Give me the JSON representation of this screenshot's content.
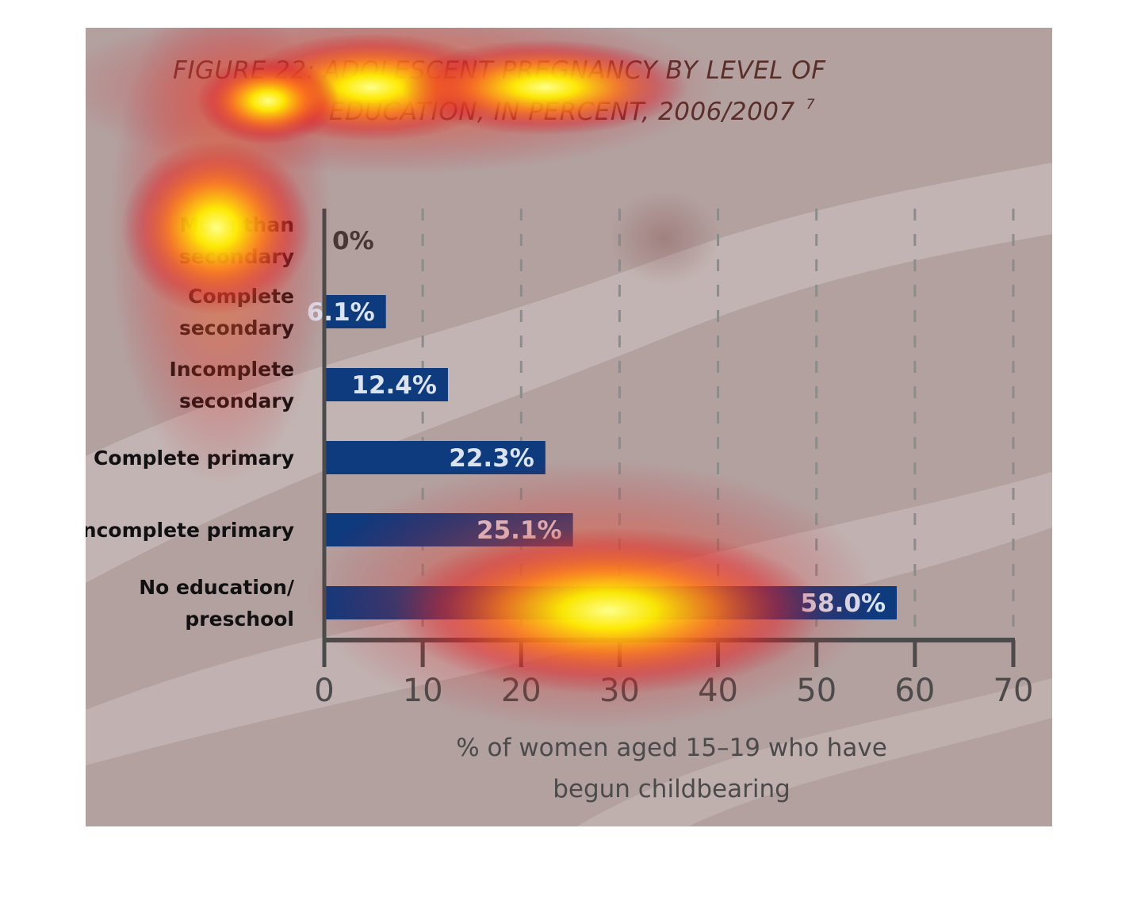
{
  "chart_data": {
    "type": "bar",
    "orientation": "horizontal",
    "title": [
      "FIGURE 22: ADOLESCENT PREGNANCY BY LEVEL OF",
      "EDUCATION, IN PERCENT, 2006/2007"
    ],
    "title_footnote": "7",
    "categories": [
      [
        "More than",
        "secondary"
      ],
      [
        "Complete",
        "secondary"
      ],
      [
        "Incomplete",
        "secondary"
      ],
      [
        "Complete primary"
      ],
      [
        "Incomplete primary"
      ],
      [
        "No education/",
        "preschool"
      ]
    ],
    "values": [
      0,
      6.1,
      12.4,
      22.3,
      25.1,
      58.0
    ],
    "data_labels": [
      "0%",
      "6.1%",
      "12.4%",
      "22.3%",
      "25.1%",
      "58.0%"
    ],
    "xlabel": [
      "% of women aged 15–19 who have",
      "begun childbearing"
    ],
    "xlim": [
      0,
      70
    ],
    "xticks": [
      0,
      10,
      20,
      30,
      40,
      50,
      60,
      70
    ],
    "grid": "vertical dashed",
    "legend": "none",
    "overlay": "attention heatmap",
    "colors": {
      "bar": "#0e3a7e",
      "label_inside": "#dbe3ef",
      "label_outside": "#4a3634",
      "axis": "#4b4b4b",
      "grid": "#8c8c8c",
      "background": "#b3a19f",
      "band": "#c4b7b5"
    }
  }
}
